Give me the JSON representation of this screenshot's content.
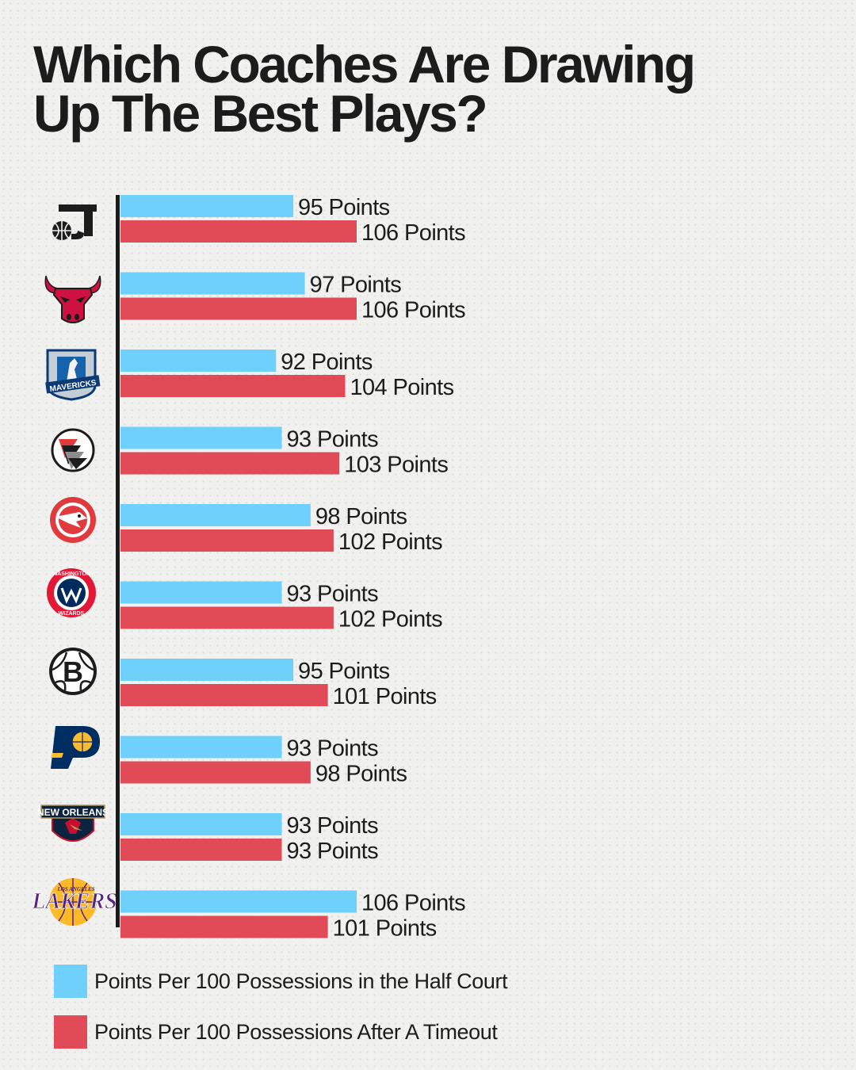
{
  "title_line1": "Which Coaches Are Drawing",
  "title_line2": "Up The Best Plays?",
  "colors": {
    "half_court": "#6fd0fb",
    "after_timeout": "#e04b57",
    "axis": "#1a1a1a"
  },
  "legend": [
    {
      "label": "Points Per 100 Possessions in the Half Court",
      "color": "#6fd0fb"
    },
    {
      "label": "Points Per 100 Possessions After A Timeout",
      "color": "#e04b57"
    }
  ],
  "chart_data": {
    "type": "bar",
    "orientation": "horizontal",
    "categories": [
      "utah-jazz",
      "chicago-bulls",
      "dallas-mavericks",
      "portland-trail-blazers",
      "atlanta-hawks",
      "washington-wizards",
      "brooklyn-nets",
      "indiana-pacers",
      "new-orleans-pelicans",
      "los-angeles-lakers"
    ],
    "series": [
      {
        "name": "Points Per 100 Possessions in the Half Court",
        "values": [
          95,
          97,
          92,
          93,
          98,
          93,
          95,
          93,
          93,
          106
        ],
        "labels": [
          "95 Points",
          "97 Points",
          "92 Points",
          "93 Points",
          "98 Points",
          "93 Points",
          "95 Points",
          "93 Points",
          "93 Points",
          "106 Points"
        ]
      },
      {
        "name": "Points Per 100 Possessions After A Timeout",
        "values": [
          106,
          106,
          104,
          103,
          102,
          102,
          101,
          98,
          93,
          101
        ],
        "labels": [
          "106 Points",
          "106 Points",
          "104 Points",
          "103 Points",
          "102 Points",
          "102 Points",
          "101 Points",
          "98 Points",
          "93 Points",
          "101 Points"
        ]
      }
    ],
    "xlim": [
      65,
      106
    ],
    "grid": false,
    "legend_position": "bottom-left"
  },
  "logos": {
    "utah-jazz": {
      "icon": "utah-jazz-logo-icon"
    },
    "chicago-bulls": {
      "icon": "chicago-bulls-logo-icon"
    },
    "dallas-mavericks": {
      "icon": "dallas-mavericks-logo-icon",
      "text": "MAVERICKS"
    },
    "portland-trail-blazers": {
      "icon": "portland-trail-blazers-logo-icon"
    },
    "atlanta-hawks": {
      "icon": "atlanta-hawks-logo-icon"
    },
    "washington-wizards": {
      "icon": "washington-wizards-logo-icon",
      "text_top": "WASHINGTON",
      "text_bottom": "WIZARDS"
    },
    "brooklyn-nets": {
      "icon": "brooklyn-nets-logo-icon",
      "text": "B"
    },
    "indiana-pacers": {
      "icon": "indiana-pacers-logo-icon"
    },
    "new-orleans-pelicans": {
      "icon": "new-orleans-pelicans-logo-icon",
      "text": "NEW ORLEANS"
    },
    "los-angeles-lakers": {
      "icon": "los-angeles-lakers-logo-icon",
      "text_top": "LOS ANGELES",
      "text": "LAKERS"
    }
  }
}
